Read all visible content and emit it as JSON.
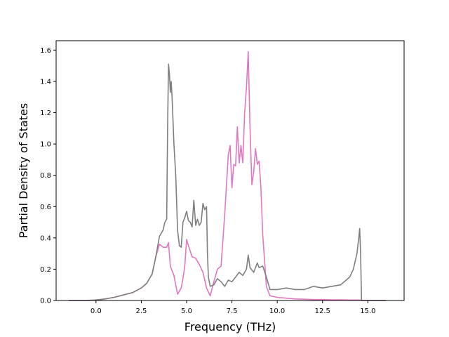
{
  "chart_data": {
    "type": "line",
    "title": "",
    "xlabel": "Frequency (THz)",
    "ylabel": "Partial Density of States",
    "xlim": [
      -2.2,
      17.0
    ],
    "ylim": [
      0.0,
      1.66
    ],
    "xticks": [
      0.0,
      2.5,
      5.0,
      7.5,
      10.0,
      12.5,
      15.0
    ],
    "xtick_labels": [
      "0.0",
      "2.5",
      "5.0",
      "7.5",
      "10.0",
      "12.5",
      "15.0"
    ],
    "yticks": [
      0.0,
      0.2,
      0.4,
      0.6,
      0.8,
      1.0,
      1.2,
      1.4,
      1.6
    ],
    "ytick_labels": [
      "0.0",
      "0.2",
      "0.4",
      "0.6",
      "0.8",
      "1.0",
      "1.2",
      "1.4",
      "1.6"
    ],
    "grid": false,
    "legend": "none",
    "series": [
      {
        "color": "#e377c2",
        "x": [
          -1.5,
          -0.5,
          0.0,
          0.5,
          1.0,
          1.5,
          2.0,
          2.5,
          2.8,
          3.1,
          3.3,
          3.5,
          3.7,
          3.9,
          4.0,
          4.1,
          4.3,
          4.5,
          4.7,
          4.8,
          4.9,
          5.0,
          5.1,
          5.3,
          5.5,
          5.7,
          5.9,
          6.1,
          6.3,
          6.5,
          6.7,
          6.9,
          7.1,
          7.3,
          7.4,
          7.5,
          7.6,
          7.7,
          7.8,
          7.9,
          8.0,
          8.1,
          8.2,
          8.3,
          8.4,
          8.5,
          8.6,
          8.7,
          8.8,
          8.9,
          9.0,
          9.1,
          9.2,
          9.4,
          9.6,
          10.0,
          10.5,
          11.0,
          11.5,
          12.0,
          12.5,
          13.0,
          13.5,
          14.0,
          14.5,
          14.6,
          14.7,
          15.0,
          16.0
        ],
        "y": [
          0.0,
          0.0,
          0.003,
          0.01,
          0.02,
          0.035,
          0.05,
          0.08,
          0.11,
          0.17,
          0.28,
          0.36,
          0.34,
          0.34,
          0.37,
          0.22,
          0.16,
          0.04,
          0.08,
          0.14,
          0.22,
          0.39,
          0.35,
          0.28,
          0.27,
          0.23,
          0.18,
          0.08,
          0.03,
          0.12,
          0.2,
          0.22,
          0.55,
          0.93,
          0.99,
          0.72,
          0.87,
          0.86,
          1.11,
          0.88,
          0.99,
          0.88,
          1.2,
          1.36,
          1.59,
          1.1,
          0.74,
          0.82,
          0.97,
          0.87,
          0.89,
          0.72,
          0.42,
          0.09,
          0.03,
          0.02,
          0.015,
          0.01,
          0.008,
          0.006,
          0.006,
          0.004,
          0.004,
          0.003,
          0.003,
          0.002,
          0.0,
          0.0,
          0.0
        ]
      },
      {
        "color": "#7f7f7f",
        "x": [
          -1.5,
          -0.5,
          0.0,
          0.5,
          1.0,
          1.5,
          2.0,
          2.5,
          2.8,
          3.1,
          3.3,
          3.5,
          3.7,
          3.8,
          3.9,
          3.95,
          4.0,
          4.05,
          4.1,
          4.15,
          4.2,
          4.3,
          4.4,
          4.5,
          4.6,
          4.7,
          4.8,
          4.9,
          5.0,
          5.1,
          5.2,
          5.3,
          5.4,
          5.5,
          5.6,
          5.7,
          5.8,
          5.9,
          6.0,
          6.1,
          6.15,
          6.2,
          6.3,
          6.5,
          6.7,
          6.9,
          7.1,
          7.3,
          7.5,
          7.7,
          7.9,
          8.1,
          8.3,
          8.4,
          8.5,
          8.7,
          8.9,
          9.0,
          9.2,
          9.4,
          9.6,
          10.0,
          10.5,
          11.0,
          11.5,
          12.0,
          12.5,
          13.0,
          13.5,
          13.8,
          14.0,
          14.2,
          14.4,
          14.5,
          14.55,
          14.6,
          14.65,
          16.0
        ],
        "y": [
          0.0,
          0.0,
          0.003,
          0.01,
          0.02,
          0.035,
          0.05,
          0.08,
          0.11,
          0.17,
          0.28,
          0.41,
          0.45,
          0.5,
          0.52,
          1.1,
          1.51,
          1.45,
          1.33,
          1.4,
          1.3,
          1.0,
          0.8,
          0.45,
          0.35,
          0.34,
          0.5,
          0.53,
          0.57,
          0.51,
          0.5,
          0.47,
          0.64,
          0.48,
          0.52,
          0.48,
          0.5,
          0.62,
          0.58,
          0.6,
          0.3,
          0.15,
          0.09,
          0.1,
          0.14,
          0.12,
          0.09,
          0.13,
          0.12,
          0.15,
          0.18,
          0.16,
          0.2,
          0.29,
          0.21,
          0.18,
          0.24,
          0.21,
          0.22,
          0.15,
          0.07,
          0.07,
          0.08,
          0.07,
          0.07,
          0.09,
          0.08,
          0.09,
          0.1,
          0.13,
          0.15,
          0.2,
          0.3,
          0.4,
          0.46,
          0.3,
          0.0,
          0.0
        ]
      }
    ]
  }
}
